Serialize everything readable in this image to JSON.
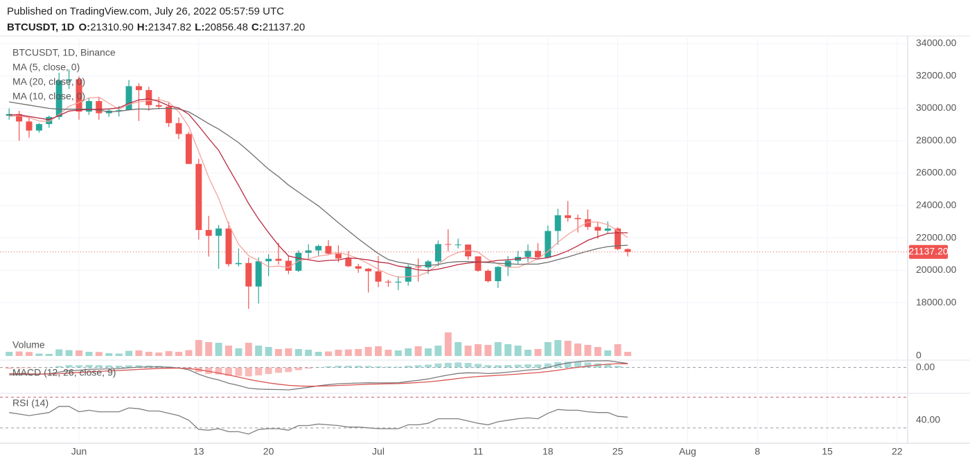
{
  "header": {
    "published": "Published on TradingView.com, July 26, 2022 05:57:59 UTC",
    "symbol": "BTCUSDT, 1D",
    "ohlc": [
      {
        "label": "O:",
        "value": "21310.90"
      },
      {
        "label": "H:",
        "value": "21347.82"
      },
      {
        "label": "L:",
        "value": "20856.48"
      },
      {
        "label": "C:",
        "value": "21137.20"
      }
    ]
  },
  "chart_data": {
    "type": "candlestick",
    "title": "BTCUSDT, 1D, Binance",
    "categories": [
      null,
      null,
      null,
      null,
      null,
      null,
      null,
      "Jun",
      null,
      null,
      null,
      null,
      null,
      null,
      null,
      null,
      null,
      null,
      null,
      "13",
      null,
      null,
      null,
      null,
      null,
      null,
      "20",
      null,
      null,
      null,
      null,
      null,
      null,
      null,
      null,
      null,
      null,
      "Jul",
      null,
      null,
      null,
      null,
      null,
      null,
      null,
      null,
      null,
      "11",
      null,
      null,
      null,
      null,
      null,
      null,
      "18",
      null,
      null,
      null,
      null,
      null,
      null,
      "25",
      null,
      null,
      null,
      null,
      null,
      null,
      "Aug",
      null,
      null,
      null,
      null,
      null,
      null,
      "8",
      null,
      null,
      null,
      null,
      null,
      null,
      "15",
      null,
      null,
      null,
      null,
      null,
      null,
      "22"
    ],
    "open": [
      29540,
      29650,
      29190,
      28630,
      29030,
      29470,
      31720,
      31790,
      29800,
      30450,
      29700,
      29860,
      29900,
      31370,
      31130,
      30200,
      30110,
      29090,
      28420,
      26570,
      22490,
      22130,
      22580,
      20380,
      20450,
      19000,
      20560,
      20710,
      20590,
      19970,
      21080,
      21230,
      21500,
      21030,
      20730,
      20250,
      20100,
      19940,
      19300,
      19250,
      19300,
      20230,
      20180,
      20550,
      21620,
      21590,
      21590,
      20860,
      19970,
      19330,
      20210,
      20590,
      20830,
      21200,
      20790,
      22430,
      23400,
      23230,
      23160,
      22680,
      22450,
      22580,
      21310.9,
      null,
      null,
      null,
      null,
      null,
      null,
      null,
      null,
      null,
      null,
      null,
      null,
      null,
      null,
      null,
      null,
      null,
      null,
      null,
      null,
      null,
      null,
      null,
      null,
      null,
      null,
      null
    ],
    "high": [
      30000,
      29850,
      29400,
      29100,
      29550,
      32200,
      32400,
      31980,
      30650,
      30680,
      29950,
      30150,
      31750,
      31550,
      31330,
      30700,
      30380,
      29440,
      28550,
      26880,
      23360,
      22800,
      22980,
      21340,
      20790,
      20800,
      21000,
      21700,
      20870,
      21230,
      21610,
      21590,
      21870,
      21540,
      21190,
      20400,
      20140,
      20880,
      19420,
      19650,
      20350,
      20730,
      20640,
      21840,
      22530,
      21950,
      21600,
      20870,
      20060,
      20260,
      20880,
      21200,
      21600,
      21680,
      22770,
      23800,
      24280,
      23440,
      23760,
      22990,
      23020,
      22660,
      21347.82,
      null,
      null,
      null,
      null,
      null,
      null,
      null,
      null,
      null,
      null,
      null,
      null,
      null,
      null,
      null,
      null,
      null,
      null,
      null,
      null,
      null,
      null,
      null,
      null,
      null,
      null,
      null
    ],
    "low": [
      29300,
      28000,
      28200,
      28500,
      28800,
      29300,
      31200,
      29300,
      29600,
      29300,
      29480,
      29500,
      29880,
      29220,
      29850,
      29930,
      28850,
      28100,
      26560,
      21900,
      20850,
      20100,
      20230,
      20240,
      17620,
      17950,
      19640,
      20350,
      19770,
      19890,
      20750,
      20900,
      20960,
      20500,
      20200,
      19850,
      18630,
      18960,
      18980,
      18780,
      19050,
      19300,
      19760,
      20250,
      21170,
      21350,
      20650,
      19900,
      19240,
      18910,
      19650,
      20400,
      20500,
      20750,
      20760,
      21580,
      23000,
      22340,
      22500,
      21950,
      22270,
      21250,
      20856.48,
      null,
      null,
      null,
      null,
      null,
      null,
      null,
      null,
      null,
      null,
      null,
      null,
      null,
      null,
      null,
      null,
      null,
      null,
      null,
      null,
      null,
      null,
      null,
      null,
      null,
      null,
      null
    ],
    "close": [
      29650,
      29190,
      28630,
      29030,
      29470,
      31720,
      31790,
      29800,
      30450,
      29700,
      29860,
      29900,
      31370,
      31130,
      30200,
      30110,
      29090,
      28420,
      26570,
      22490,
      22130,
      22580,
      20380,
      20450,
      19000,
      20560,
      20710,
      20590,
      19970,
      21080,
      21230,
      21500,
      21030,
      20730,
      20250,
      20100,
      19940,
      19300,
      19250,
      19300,
      20230,
      20180,
      20550,
      21620,
      21590,
      21590,
      20860,
      19970,
      19330,
      20210,
      20590,
      20830,
      21200,
      20790,
      22430,
      23400,
      23230,
      23160,
      22680,
      22450,
      22580,
      21310,
      21137.2,
      null,
      null,
      null,
      null,
      null,
      null,
      null,
      null,
      null,
      null,
      null,
      null,
      null,
      null,
      null,
      null,
      null,
      null,
      null,
      null,
      null,
      null,
      null,
      null,
      null,
      null,
      null
    ],
    "up_color": "#26a69a",
    "down_color": "#ef5350",
    "ylim": [
      14540,
      34340
    ],
    "yticks": [
      {
        "value": 18000,
        "label": "18000.00"
      },
      {
        "value": 20000,
        "label": "20000.00"
      },
      {
        "value": 22000,
        "label": "22000.00"
      },
      {
        "value": 24000,
        "label": "24000.00"
      },
      {
        "value": 26000,
        "label": "26000.00"
      },
      {
        "value": 28000,
        "label": "28000.00"
      },
      {
        "value": 30000,
        "label": "30000.00"
      },
      {
        "value": 32000,
        "label": "32000.00"
      },
      {
        "value": 34000,
        "label": "34000.00"
      }
    ],
    "grid": true,
    "last_value_label": "21137.20",
    "overlays": [
      {
        "name": "MA (5, close, 0)",
        "color": "#f4a39b",
        "values": [
          29500,
          29550,
          29430,
          29220,
          29194,
          29608,
          30128,
          30362,
          30646,
          30692,
          30320,
          29942,
          30256,
          30392,
          30492,
          30542,
          30380,
          29790,
          28878,
          27336,
          25740,
          24438,
          22830,
          21606,
          20908,
          20594,
          20220,
          20262,
          20166,
          20582,
          20716,
          20874,
          20962,
          21114,
          20948,
          20722,
          20410,
          20064,
          19768,
          19578,
          19604,
          19652,
          19902,
          20376,
          20834,
          21106,
          21242,
          21126,
          20668,
          20392,
          20192,
          20186,
          20432,
          20724,
          21168,
          21730,
          22210,
          22602,
          22980,
          22984,
          22820,
          22436,
          22031,
          null,
          null,
          null,
          null,
          null,
          null,
          null,
          null,
          null,
          null,
          null,
          null,
          null,
          null,
          null,
          null,
          null,
          null,
          null,
          null,
          null,
          null,
          null,
          null,
          null,
          null,
          null
        ]
      },
      {
        "name": "MA (20, close, 0)",
        "color": "#6e6e6e",
        "values": [
          30400,
          30300,
          30200,
          30100,
          30000,
          29950,
          29950,
          29950,
          29950,
          29900,
          29782,
          29818,
          29905,
          29960,
          29946,
          29993,
          30000,
          29960,
          29784,
          29429,
          29053,
          28722,
          28310,
          27881,
          27357,
          26799,
          26245,
          25785,
          25261,
          24830,
          24398,
          23978,
          23461,
          22941,
          22444,
          21943,
          21486,
          21030,
          20664,
          20504,
          20409,
          20289,
          20298,
          20356,
          20486,
          20537,
          20545,
          20514,
          20482,
          20438,
          20406,
          20373,
          20381,
          20384,
          20493,
          20658,
          20823,
          21016,
          21187,
          21345,
          21462,
          21519,
          21548,
          null,
          null,
          null,
          null,
          null,
          null,
          null,
          null,
          null,
          null,
          null,
          null,
          null,
          null,
          null,
          null,
          null,
          null,
          null,
          null,
          null,
          null,
          null,
          null,
          null,
          null,
          null
        ]
      },
      {
        "name": "MA (10, close, 0)",
        "color": "#b8283f",
        "values": [
          29600,
          29600,
          29500,
          29400,
          29300,
          29554,
          29839,
          29896,
          29933,
          29943,
          29964,
          30035,
          30309,
          30519,
          30592,
          30431,
          30161,
          30023,
          29635,
          28914,
          28141,
          27409,
          26310,
          25242,
          24122,
          23167,
          22329,
          21546,
          20886,
          20745,
          20655,
          20547,
          20612,
          20640,
          20765,
          20719,
          20642,
          20513,
          20441,
          20263,
          20163,
          20031,
          19983,
          20072,
          20206,
          20355,
          20447,
          20514,
          20522,
          20613,
          20649,
          20714,
          20779,
          20696,
          20780,
          20961,
          21198,
          21517,
          21852,
          22076,
          22275,
          22323,
          22317,
          null,
          null,
          null,
          null,
          null,
          null,
          null,
          null,
          null,
          null,
          null,
          null,
          null,
          null,
          null,
          null,
          null,
          null,
          null,
          null,
          null,
          null,
          null,
          null,
          null,
          null,
          null
        ]
      }
    ],
    "volume": {
      "name": "Volume",
      "ylim": [
        0,
        380000
      ],
      "yticks": [
        0
      ],
      "values": [
        60000,
        65000,
        58000,
        35000,
        30000,
        95000,
        85000,
        80000,
        60000,
        58000,
        40000,
        35000,
        75000,
        80000,
        60000,
        50000,
        70000,
        60000,
        85000,
        230000,
        200000,
        190000,
        150000,
        110000,
        190000,
        150000,
        130000,
        100000,
        110000,
        100000,
        90000,
        60000,
        65000,
        90000,
        95000,
        100000,
        130000,
        140000,
        90000,
        80000,
        110000,
        140000,
        110000,
        150000,
        340000,
        200000,
        150000,
        170000,
        160000,
        200000,
        170000,
        150000,
        90000,
        100000,
        200000,
        230000,
        220000,
        180000,
        160000,
        130000,
        80000,
        170000,
        60000,
        null,
        null,
        null,
        null,
        null,
        null,
        null,
        null,
        null,
        null,
        null,
        null,
        null,
        null,
        null,
        null,
        null,
        null,
        null,
        null,
        null,
        null,
        null,
        null,
        null,
        null,
        null
      ]
    },
    "macd": {
      "name": "MACD (12, 26, close, 9)",
      "ylim": [
        -2100,
        600
      ],
      "yticks": [
        {
          "value": 0,
          "label": "0.00"
        }
      ],
      "lines": [
        {
          "color": "#7a7a7a",
          "values": [
            -600,
            -580,
            -570,
            -540,
            -500,
            -380,
            -250,
            -220,
            -150,
            -130,
            -110,
            -95,
            -20,
            30,
            50,
            60,
            20,
            -40,
            -180,
            -550,
            -820,
            -1010,
            -1280,
            -1460,
            -1680,
            -1750,
            -1780,
            -1790,
            -1820,
            -1720,
            -1610,
            -1480,
            -1390,
            -1320,
            -1290,
            -1260,
            -1240,
            -1250,
            -1250,
            -1240,
            -1130,
            -1040,
            -930,
            -760,
            -610,
            -480,
            -430,
            -440,
            -490,
            -450,
            -380,
            -300,
            -210,
            -160,
            0,
            220,
            370,
            480,
            530,
            540,
            550,
            440,
            330,
            null,
            null,
            null,
            null,
            null,
            null,
            null,
            null,
            null,
            null,
            null,
            null,
            null,
            null,
            null,
            null,
            null,
            null,
            null,
            null,
            null,
            null,
            null,
            null,
            null,
            null,
            null
          ]
        },
        {
          "color": "#d9534f",
          "values": [
            -500,
            -510,
            -520,
            -525,
            -525,
            -500,
            -450,
            -400,
            -360,
            -320,
            -280,
            -245,
            -200,
            -155,
            -115,
            -80,
            -60,
            -55,
            -80,
            -175,
            -305,
            -445,
            -610,
            -780,
            -960,
            -1115,
            -1250,
            -1360,
            -1450,
            -1500,
            -1520,
            -1510,
            -1490,
            -1460,
            -1430,
            -1395,
            -1365,
            -1340,
            -1320,
            -1305,
            -1270,
            -1225,
            -1165,
            -1085,
            -990,
            -890,
            -800,
            -730,
            -680,
            -635,
            -585,
            -530,
            -470,
            -410,
            -330,
            -220,
            -100,
            15,
            115,
            200,
            270,
            305,
            310,
            null,
            null,
            null,
            null,
            null,
            null,
            null,
            null,
            null,
            null,
            null,
            null,
            null,
            null,
            null,
            null,
            null,
            null,
            null,
            null,
            null,
            null,
            null,
            null,
            null,
            null,
            null
          ]
        }
      ],
      "histogram": [
        -100,
        -70,
        -50,
        -15,
        25,
        120,
        200,
        180,
        210,
        190,
        170,
        150,
        180,
        185,
        165,
        140,
        80,
        15,
        -100,
        -375,
        -515,
        -565,
        -670,
        -680,
        -720,
        -635,
        -530,
        -430,
        -370,
        -220,
        -90,
        30,
        100,
        140,
        140,
        135,
        125,
        90,
        70,
        65,
        140,
        185,
        235,
        325,
        380,
        410,
        370,
        290,
        190,
        185,
        205,
        230,
        260,
        250,
        330,
        440,
        470,
        465,
        415,
        340,
        280,
        135,
        20,
        null,
        null,
        null,
        null,
        null,
        null,
        null,
        null,
        null,
        null,
        null,
        null,
        null,
        null,
        null,
        null,
        null,
        null,
        null,
        null,
        null,
        null,
        null,
        null,
        null,
        null,
        null
      ]
    },
    "rsi": {
      "name": "RSI (14)",
      "color": "#7e7e7e",
      "ylim": [
        10,
        75
      ],
      "yticks": [
        {
          "value": 40,
          "label": "40.00"
        }
      ],
      "levels": [
        30,
        70
      ],
      "values": [
        50,
        48,
        46,
        48,
        50,
        58,
        58,
        51,
        53,
        51,
        51,
        51,
        56,
        55,
        52,
        52,
        49,
        46,
        40,
        28,
        27,
        29,
        25,
        25,
        22,
        28,
        29,
        29,
        27,
        33,
        33,
        35,
        34,
        33,
        31,
        31,
        30,
        29,
        29,
        29,
        34,
        34,
        36,
        42,
        42,
        42,
        39,
        36,
        34,
        38,
        40,
        42,
        43,
        42,
        49,
        54,
        53,
        53,
        51,
        50,
        50,
        45,
        44,
        null,
        null,
        null,
        null,
        null,
        null,
        null,
        null,
        null,
        null,
        null,
        null,
        null,
        null,
        null,
        null,
        null,
        null,
        null,
        null,
        null,
        null,
        null,
        null,
        null,
        null,
        null
      ]
    }
  }
}
